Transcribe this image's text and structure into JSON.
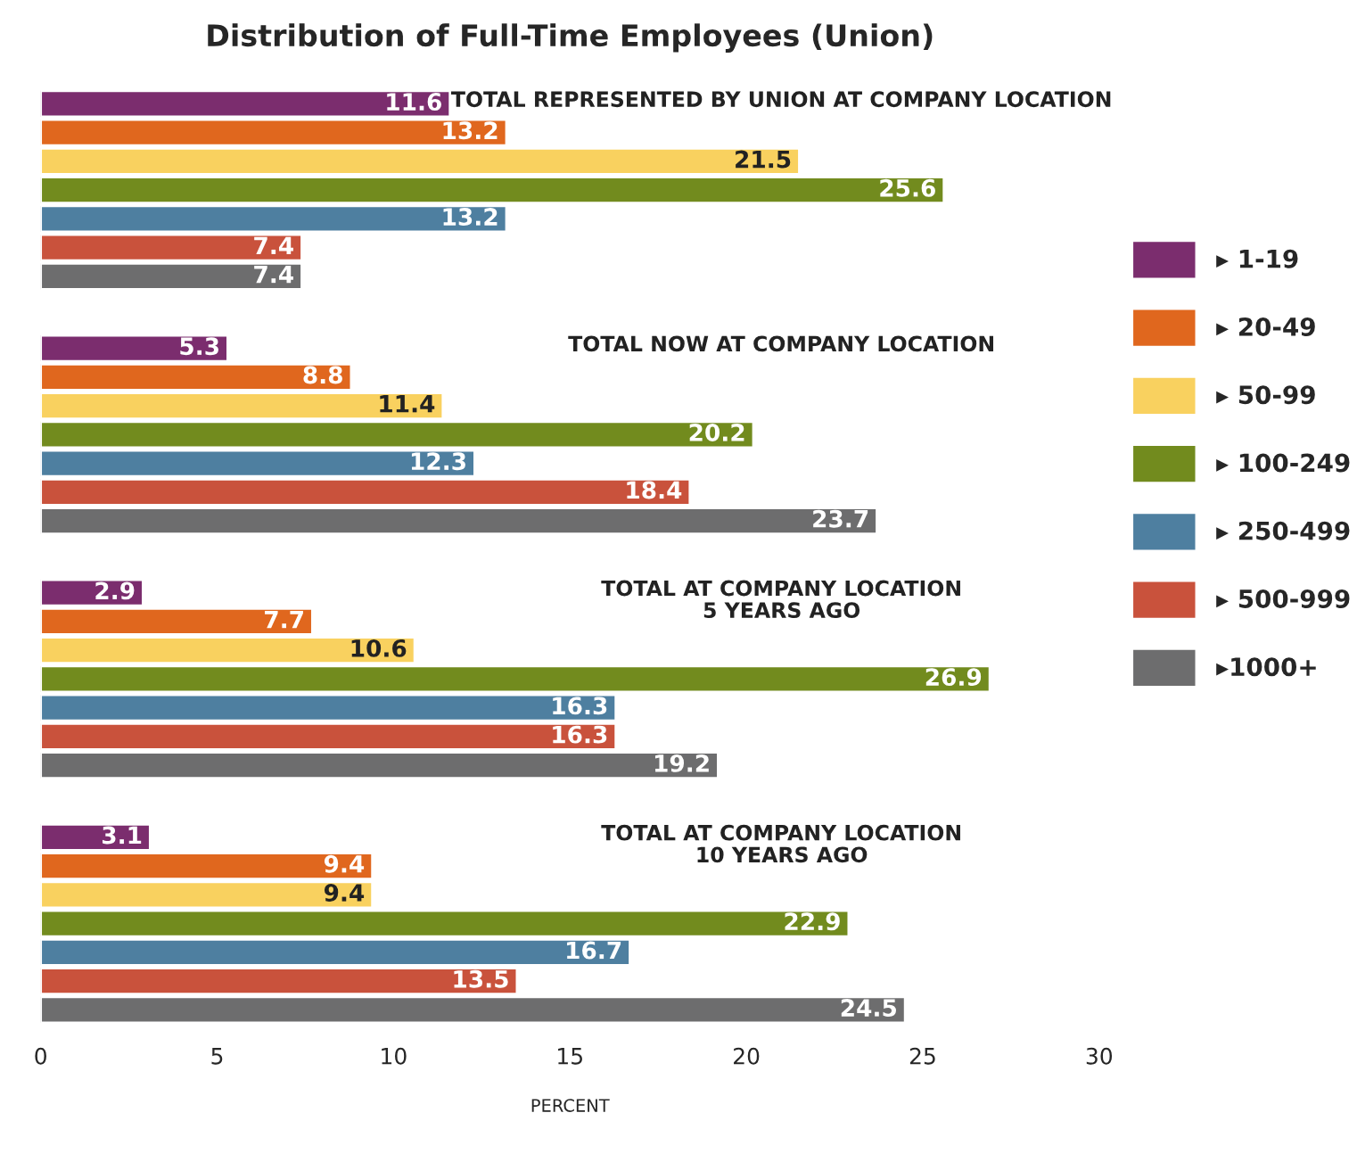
{
  "chart_data": {
    "type": "bar",
    "orientation": "horizontal",
    "title": "Distribution of Full-Time Employees (Union)",
    "xlabel": "PERCENT",
    "categories": [
      "TOTAL REPRESENTED BY UNION AT COMPANY LOCATION",
      "TOTAL NOW AT COMPANY LOCATION",
      "TOTAL AT COMPANY LOCATION\n5 YEARS AGO",
      "TOTAL AT COMPANY LOCATION\n10 YEARS AGO"
    ],
    "series": [
      {
        "name": "▸ 1-19",
        "color": "#7b2d6e",
        "values": [
          11.6,
          5.3,
          2.9,
          3.1
        ]
      },
      {
        "name": "▸ 20-49",
        "color": "#e0671e",
        "values": [
          13.2,
          8.8,
          7.7,
          9.4
        ]
      },
      {
        "name": "▸ 50-99",
        "color": "#f9d15f",
        "values": [
          21.5,
          11.4,
          10.6,
          9.4
        ]
      },
      {
        "name": "▸ 100-249",
        "color": "#728b1e",
        "values": [
          25.6,
          20.2,
          26.9,
          22.9
        ]
      },
      {
        "name": "▸ 250-499",
        "color": "#4e7fa0",
        "values": [
          13.2,
          12.3,
          16.3,
          16.7
        ]
      },
      {
        "name": "▸ 500-999",
        "color": "#c9523c",
        "values": [
          7.4,
          18.4,
          16.3,
          13.5
        ]
      },
      {
        "name": "▸1000+",
        "color": "#6d6d6e",
        "values": [
          7.4,
          23.7,
          19.2,
          24.5
        ]
      }
    ],
    "xlim": [
      0,
      30
    ],
    "xticks": [
      0,
      5,
      10,
      15,
      20,
      25,
      30
    ],
    "tick_labels": "x",
    "data_labels": true,
    "legend": "right",
    "grid": false
  }
}
